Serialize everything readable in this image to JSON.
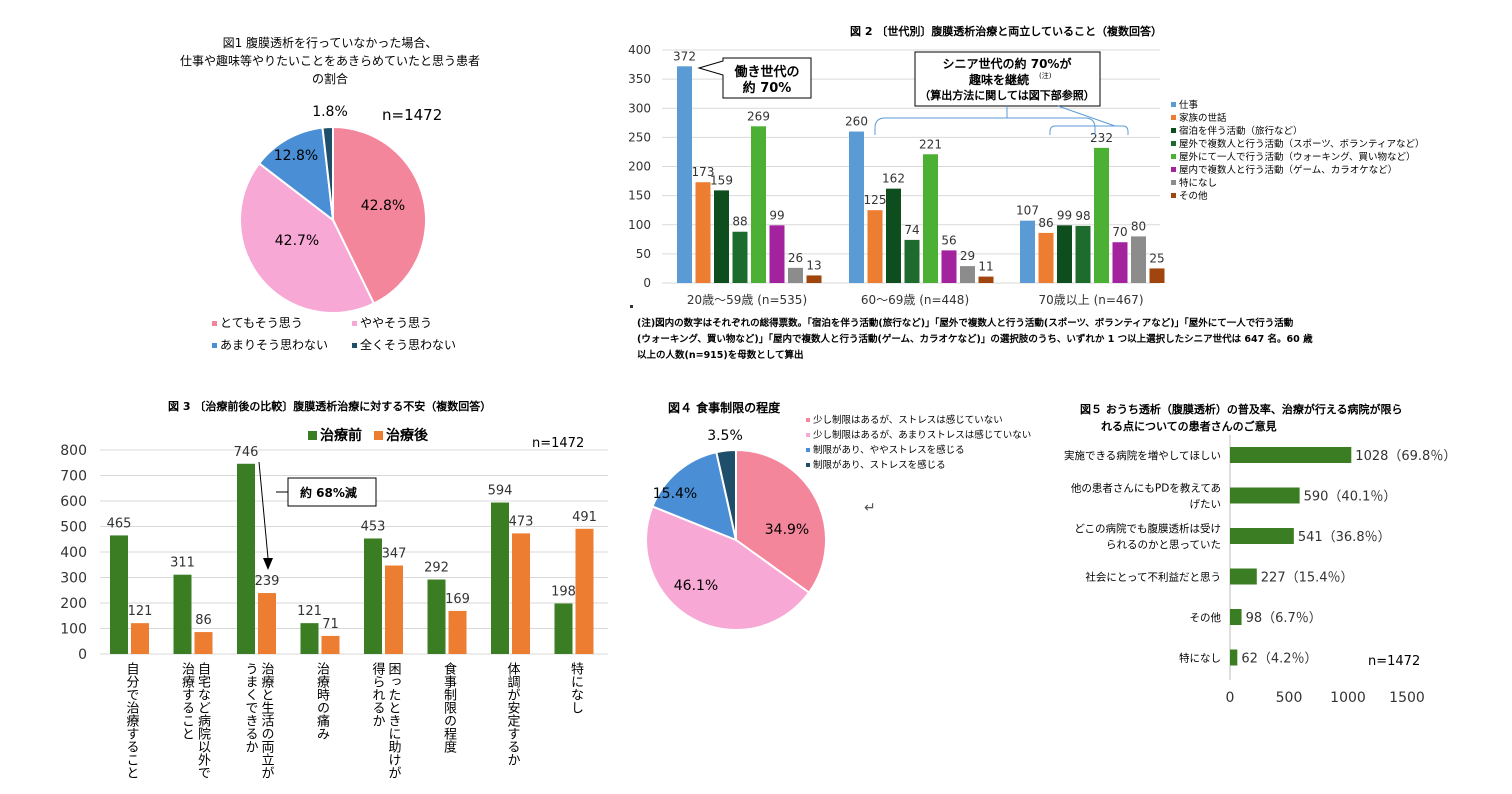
{
  "fig1": {
    "title_lines": [
      "図1  腹膜透析を行っていなかった場合、",
      "仕事や趣味等やりたいことをあきらめていたと思う患者",
      "の割合"
    ],
    "n_label": "n=1472",
    "chart_data": {
      "type": "pie",
      "title": "図1  腹膜透析を行っていなかった場合、仕事や趣味等やりたいことをあきらめていたと思う患者の割合",
      "slices": [
        {
          "label": "とてもそう思う",
          "value": 42.8,
          "display": "42.8%",
          "color": "#F4869C"
        },
        {
          "label": "ややそう思う",
          "value": 42.7,
          "display": "42.7%",
          "color": "#F7A8D5"
        },
        {
          "label": "あまりそう思わない",
          "value": 12.8,
          "display": "12.8%",
          "color": "#4A8FD6"
        },
        {
          "label": "全くそう思わない",
          "value": 1.8,
          "display": "1.8%",
          "color": "#1F4E6B"
        }
      ],
      "legend_placement": "bottom"
    }
  },
  "fig2": {
    "title": "図 2 〔世代別〕腹膜透析治療と両立していること（複数回答）",
    "callout1": [
      "働き世代の",
      "約 70%"
    ],
    "callout2": [
      "シニア世代の約 70%が",
      "趣味を継続",
      "(注)",
      "（算出方法に関しては図下部参照）"
    ],
    "note_lines": [
      "(注)図内の数字はそれぞれの総得票数。「宿泊を伴う活動(旅行など)」「屋外で複数人と行う活動(スポーツ、ボランティアなど)」「屋外にて一人で行う活動",
      "(ウォーキング、買い物など)」「屋内で複数人と行う活動(ゲーム、カラオケなど)」の選択肢のうち、いずれか 1 つ以上選択したシニア世代は 647 名。60 歳",
      "以上の人数(n=915)を母数として算出"
    ],
    "chart_data": {
      "type": "bar",
      "title": "図 2 〔世代別〕腹膜透析治療と両立していること（複数回答）",
      "categories": [
        "20歳～59歳 (n=535)",
        "60～69歳 (n=448)",
        "70歳以上 (n=467)"
      ],
      "ylim": [
        0,
        400
      ],
      "yticks": [
        0,
        50,
        100,
        150,
        200,
        250,
        300,
        350,
        400
      ],
      "grid": true,
      "legend_placement": "right",
      "series": [
        {
          "name": "仕事",
          "color": "#5B9BD5",
          "values": [
            372,
            260,
            107
          ]
        },
        {
          "name": "家族の世話",
          "color": "#ED7D31",
          "values": [
            173,
            125,
            86
          ]
        },
        {
          "name": "宿泊を伴う活動（旅行など）",
          "color": "#0E4D1E",
          "values": [
            159,
            162,
            99
          ]
        },
        {
          "name": "屋外で複数人と行う活動（スポーツ、ボランティアなど）",
          "color": "#1E6B2E",
          "values": [
            88,
            74,
            98
          ]
        },
        {
          "name": "屋外にて一人で行う活動（ウォーキング、買い物など）",
          "color": "#4CB034",
          "values": [
            269,
            221,
            232
          ]
        },
        {
          "name": "屋内で複数人と行う活動（ゲーム、カラオケなど）",
          "color": "#A3239F",
          "values": [
            99,
            56,
            70
          ]
        },
        {
          "name": "特になし",
          "color": "#8C8C8C",
          "values": [
            26,
            29,
            80
          ]
        },
        {
          "name": "その他",
          "color": "#A0450D",
          "values": [
            13,
            11,
            25
          ]
        }
      ]
    }
  },
  "fig3": {
    "title": "図 3 〔治療前後の比較〕腹膜透析治療に対する不安（複数回答）",
    "n_label": "n=1472",
    "callout": "約 68%減",
    "chart_data": {
      "type": "bar",
      "title": "図 3 〔治療前後の比較〕腹膜透析治療に対する不安（複数回答）",
      "categories": [
        "自分で治療すること",
        "自宅など病院以外で治療すること",
        "治療と生活の両立がうまくできるか",
        "治療時の痛み",
        "困ったときに助けが得られるか",
        "食事制限の程度",
        "体調が安定するか",
        "特になし"
      ],
      "category_lines": [
        [
          "自分で治療すること"
        ],
        [
          "自宅など病院以外で",
          "治療すること"
        ],
        [
          "治療と生活の両立が",
          "うまくできるか"
        ],
        [
          "治療時の痛み"
        ],
        [
          "困ったときに助けが",
          "得られるか"
        ],
        [
          "食事制限の程度"
        ],
        [
          "体調が安定するか"
        ],
        [
          "特になし"
        ]
      ],
      "ylim": [
        0,
        800
      ],
      "yticks": [
        0,
        100,
        200,
        300,
        400,
        500,
        600,
        700,
        800
      ],
      "grid": true,
      "legend_placement": "top",
      "series": [
        {
          "name": "治療前",
          "color": "#3A7D22",
          "values": [
            465,
            311,
            746,
            121,
            453,
            292,
            594,
            198
          ]
        },
        {
          "name": "治療後",
          "color": "#ED7D31",
          "values": [
            121,
            86,
            239,
            71,
            347,
            169,
            473,
            491
          ]
        }
      ]
    }
  },
  "fig4": {
    "title": "図４  食事制限の程度",
    "return_mark": "↵",
    "chart_data": {
      "type": "pie",
      "title": "図４  食事制限の程度",
      "legend_placement": "right",
      "slices": [
        {
          "label": "少し制限はあるが、ストレスは感じていない",
          "value": 34.9,
          "display": "34.9%",
          "color": "#F4869C"
        },
        {
          "label": "少し制限はあるが、あまりストレスは感じていない",
          "value": 46.1,
          "display": "46.1%",
          "color": "#F7A8D5"
        },
        {
          "label": "制限があり、ややストレスを感じる",
          "value": 15.4,
          "display": "15.4%",
          "color": "#4A8FD6"
        },
        {
          "label": "制限があり、ストレスを感じる",
          "value": 3.5,
          "display": "3.5%",
          "color": "#1F4E6B"
        }
      ]
    }
  },
  "fig5": {
    "title_lines": [
      "図５  おうち透析（腹膜透析）の普及率、治療が行える病院が限ら",
      "れる点についての患者さんのご意見"
    ],
    "n_label": "n=1472",
    "chart_data": {
      "type": "bar",
      "orientation": "horizontal",
      "title": "図５  おうち透析（腹膜透析）の普及率、治療が行える病院が限られる点についての患者さんのご意見",
      "categories": [
        "実施できる病院を増やしてほしい",
        "他の患者さんにもPDを教えてあげたい",
        "どこの病院でも腹膜透析は受けられるのかと思っていた",
        "社会にとって不利益だと思う",
        "その他",
        "特になし"
      ],
      "category_lines": [
        [
          "実施できる病院を増やしてほしい"
        ],
        [
          "他の患者さんにもPDを教えてあ",
          "げたい"
        ],
        [
          "どこの病院でも腹膜透析は受け",
          "られるのかと思っていた"
        ],
        [
          "社会にとって不利益だと思う"
        ],
        [
          "その他"
        ],
        [
          "特になし"
        ]
      ],
      "values": [
        1028,
        590,
        541,
        227,
        98,
        62
      ],
      "value_labels": [
        "1028（69.8％）",
        "590（40.1％）",
        "541（36.8％）",
        "227（15.4％）",
        "98（6.7％）",
        "62（4.2％）"
      ],
      "color": "#3A7D22",
      "xlim": [
        0,
        1500
      ],
      "xticks": [
        0,
        500,
        1000,
        1500
      ],
      "grid": false
    }
  }
}
